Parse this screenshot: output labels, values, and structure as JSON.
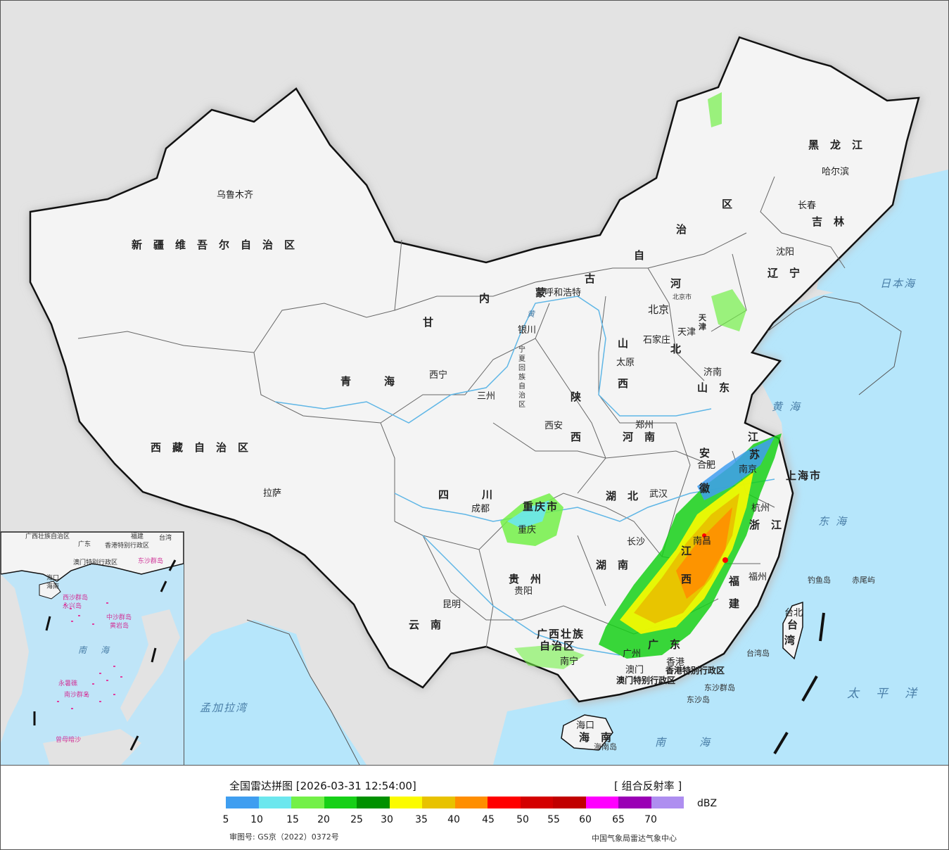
{
  "map": {
    "provinces": [
      {
        "id": "xinjiang",
        "name": "新疆维吾尔自治区"
      },
      {
        "id": "xizang",
        "name": "西藏自治区"
      },
      {
        "id": "qinghai",
        "name": "青　海"
      },
      {
        "id": "gansu",
        "name": "甘"
      },
      {
        "id": "neimenggu_nei",
        "name": "内"
      },
      {
        "id": "neimenggu_meng",
        "name": "蒙"
      },
      {
        "id": "neimenggu_gu",
        "name": "古"
      },
      {
        "id": "neimenggu_zi",
        "name": "自"
      },
      {
        "id": "neimenggu_zhi",
        "name": "治"
      },
      {
        "id": "neimenggu_qu",
        "name": "区"
      },
      {
        "id": "heilongjiang",
        "name": "黑龙江"
      },
      {
        "id": "jilin",
        "name": "吉林"
      },
      {
        "id": "liaoning",
        "name": "辽宁"
      },
      {
        "id": "hebei_he",
        "name": "河"
      },
      {
        "id": "hebei_bei",
        "name": "北"
      },
      {
        "id": "shanxi_shan",
        "name": "山"
      },
      {
        "id": "shanxi_xi",
        "name": "西"
      },
      {
        "id": "shandong",
        "name": "山东"
      },
      {
        "id": "shaanxi_shan",
        "name": "陕"
      },
      {
        "id": "shaanxi_xi",
        "name": "西"
      },
      {
        "id": "henan",
        "name": "河南"
      },
      {
        "id": "jiangsu_jiang",
        "name": "江"
      },
      {
        "id": "jiangsu_su",
        "name": "苏"
      },
      {
        "id": "anhui_an",
        "name": "安"
      },
      {
        "id": "anhui_hui",
        "name": "徽"
      },
      {
        "id": "shanghai",
        "name": "上海市"
      },
      {
        "id": "zhejiang",
        "name": "浙江"
      },
      {
        "id": "sichuan",
        "name": "四　川"
      },
      {
        "id": "chongqing",
        "name": "重庆市"
      },
      {
        "id": "hubei",
        "name": "湖北"
      },
      {
        "id": "hunan",
        "name": "湖南"
      },
      {
        "id": "jiangxi_jiang",
        "name": "江"
      },
      {
        "id": "jiangxi_xi",
        "name": "西"
      },
      {
        "id": "fujian_fu",
        "name": "福"
      },
      {
        "id": "fujian_jian",
        "name": "建"
      },
      {
        "id": "guizhou",
        "name": "贵州"
      },
      {
        "id": "yunnan",
        "name": "云南"
      },
      {
        "id": "guangxi1",
        "name": "广西壮族"
      },
      {
        "id": "guangxi2",
        "name": "自治区"
      },
      {
        "id": "guangdong",
        "name": "广东"
      },
      {
        "id": "hainan",
        "name": "海南"
      },
      {
        "id": "taiwan_tai",
        "name": "台"
      },
      {
        "id": "taiwan_wan",
        "name": "湾"
      },
      {
        "id": "ningxia",
        "name": "宁夏回族自治区"
      },
      {
        "id": "tianjin",
        "name": "天津"
      },
      {
        "id": "hk",
        "name": "香港特别行政区"
      },
      {
        "id": "macau",
        "name": "澳门特别行政区"
      },
      {
        "id": "beijing_city",
        "name": "北京市"
      }
    ],
    "cities": [
      {
        "id": "urumqi",
        "name": "乌鲁木齐"
      },
      {
        "id": "lhasa",
        "name": "拉萨"
      },
      {
        "id": "xining",
        "name": "西宁"
      },
      {
        "id": "lanzhou",
        "name": "三州"
      },
      {
        "id": "yinchuan",
        "name": "银川"
      },
      {
        "id": "hohhot",
        "name": "呼和浩特"
      },
      {
        "id": "beijing",
        "name": "北京"
      },
      {
        "id": "tianjin_c",
        "name": "天津"
      },
      {
        "id": "shijiazhuang",
        "name": "石家庄"
      },
      {
        "id": "taiyuan",
        "name": "太原"
      },
      {
        "id": "jinan",
        "name": "济南"
      },
      {
        "id": "zhengzhou",
        "name": "郑州"
      },
      {
        "id": "xian",
        "name": "西安"
      },
      {
        "id": "shenyang",
        "name": "沈阳"
      },
      {
        "id": "changchun",
        "name": "长春"
      },
      {
        "id": "harbin",
        "name": "哈尔滨"
      },
      {
        "id": "hefei",
        "name": "合肥"
      },
      {
        "id": "nanjing",
        "name": "南京"
      },
      {
        "id": "hangzhou",
        "name": "杭州"
      },
      {
        "id": "wuhan",
        "name": "武汉"
      },
      {
        "id": "chengdu",
        "name": "成都"
      },
      {
        "id": "chongqing_c",
        "name": "重庆"
      },
      {
        "id": "changsha",
        "name": "长沙"
      },
      {
        "id": "nanchang",
        "name": "南昌"
      },
      {
        "id": "fuzhou",
        "name": "福州"
      },
      {
        "id": "guiyang",
        "name": "贵阳"
      },
      {
        "id": "kunming",
        "name": "昆明"
      },
      {
        "id": "nanning",
        "name": "南宁"
      },
      {
        "id": "guangzhou",
        "name": "广州"
      },
      {
        "id": "hongkong",
        "name": "香港"
      },
      {
        "id": "macao",
        "name": "澳门"
      },
      {
        "id": "haikou",
        "name": "海口"
      },
      {
        "id": "taibei",
        "name": "台北"
      }
    ],
    "seas": [
      {
        "id": "bohai",
        "name": "黄"
      },
      {
        "id": "huanghai",
        "name": "黄海"
      },
      {
        "id": "donghai",
        "name": "东海"
      },
      {
        "id": "nanhai",
        "name": "南海"
      },
      {
        "id": "taipingyang",
        "name": "太平洋"
      },
      {
        "id": "ribenhai",
        "name": "日本海"
      },
      {
        "id": "mengjiala",
        "name": "孟加拉湾"
      }
    ],
    "islands": [
      {
        "id": "diaoyu",
        "name": "钓鱼岛"
      },
      {
        "id": "chiwei",
        "name": "赤尾屿"
      },
      {
        "id": "taiwandao",
        "name": "台湾岛"
      },
      {
        "id": "dongsha",
        "name": "东沙群岛"
      },
      {
        "id": "dongsha2",
        "name": "东沙岛"
      },
      {
        "id": "hainandao",
        "name": "海南岛"
      }
    ],
    "inset": {
      "labels": [
        {
          "id": "i_guangxi",
          "name": "广西壮族自治区"
        },
        {
          "id": "i_guangdong",
          "name": "广东"
        },
        {
          "id": "i_fujian",
          "name": "福建"
        },
        {
          "id": "i_taiwan",
          "name": "台湾"
        },
        {
          "id": "i_hk",
          "name": "香港特别行政区"
        },
        {
          "id": "i_macau",
          "name": "澳门特别行政区"
        },
        {
          "id": "i_dongsha",
          "name": "东沙群岛"
        },
        {
          "id": "i_haikou",
          "name": "海口"
        },
        {
          "id": "i_hainan",
          "name": "海南"
        },
        {
          "id": "i_xisha",
          "name": "西沙群岛"
        },
        {
          "id": "i_zhongsha",
          "name": "中沙群岛"
        },
        {
          "id": "i_huangyan",
          "name": "黄岩岛"
        },
        {
          "id": "i_yongxing",
          "name": "永兴岛"
        },
        {
          "id": "i_nanhai",
          "name": "南　海"
        },
        {
          "id": "i_nansha",
          "name": "南沙群岛"
        },
        {
          "id": "i_yongshu",
          "name": "永暑礁"
        },
        {
          "id": "i_zengmu",
          "name": "曾母暗沙"
        }
      ]
    }
  },
  "legend": {
    "title": "全国雷达拼图 [2026-03-31 12:54:00]",
    "product": "[ 组合反射率 ]",
    "unit": "dBZ",
    "ticks": [
      "5",
      "10",
      "15",
      "20",
      "25",
      "30",
      "35",
      "40",
      "45",
      "50",
      "55",
      "60",
      "65",
      "70"
    ],
    "colors": [
      "#3f9ef0",
      "#6ce7ee",
      "#73f048",
      "#16d017",
      "#009100",
      "#fbfb00",
      "#e8c200",
      "#ff8e00",
      "#ff0000",
      "#d40000",
      "#c10000",
      "#ff00ff",
      "#9a00b5",
      "#ae8ef0"
    ],
    "approval": "审图号: GS京（2022）0372号",
    "agency": "中国气象局雷达气象中心"
  }
}
